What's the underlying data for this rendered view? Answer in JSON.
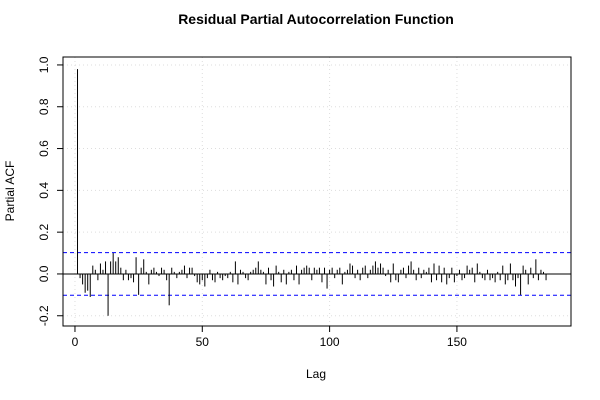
{
  "chart_data": {
    "type": "pacf",
    "title": "Residual Partial Autocorrelation Function",
    "x_label": "Lag",
    "y_label": "Partial ACF",
    "x": [
      1,
      2,
      3,
      4,
      5,
      6,
      7,
      8,
      9,
      10,
      11,
      12,
      13,
      14,
      15,
      16,
      17,
      18,
      19,
      20,
      21,
      22,
      23,
      24,
      25,
      26,
      27,
      28,
      29,
      30,
      31,
      32,
      33,
      34,
      35,
      36,
      37,
      38,
      39,
      40,
      41,
      42,
      43,
      44,
      45,
      46,
      47,
      48,
      49,
      50,
      51,
      52,
      53,
      54,
      55,
      56,
      57,
      58,
      59,
      60,
      61,
      62,
      63,
      64,
      65,
      66,
      67,
      68,
      69,
      70,
      71,
      72,
      73,
      74,
      75,
      76,
      77,
      78,
      79,
      80,
      81,
      82,
      83,
      84,
      85,
      86,
      87,
      88,
      89,
      90,
      91,
      92,
      93,
      94,
      95,
      96,
      97,
      98,
      99,
      100,
      101,
      102,
      103,
      104,
      105,
      106,
      107,
      108,
      109,
      110,
      111,
      112,
      113,
      114,
      115,
      116,
      117,
      118,
      119,
      120,
      121,
      122,
      123,
      124,
      125,
      126,
      127,
      128,
      129,
      130,
      131,
      132,
      133,
      134,
      135,
      136,
      137,
      138,
      139,
      140,
      141,
      142,
      143,
      144,
      145,
      146,
      147,
      148,
      149,
      150,
      151,
      152,
      153,
      154,
      155,
      156,
      157,
      158,
      159,
      160,
      161,
      162,
      163,
      164,
      165,
      166,
      167,
      168,
      169,
      170,
      171,
      172,
      173,
      174,
      175,
      176,
      177,
      178,
      179,
      180,
      181,
      182,
      183,
      184,
      185
    ],
    "values": [
      0.98,
      -0.02,
      -0.05,
      -0.09,
      -0.08,
      -0.11,
      0.04,
      0.02,
      -0.03,
      0.05,
      0.02,
      0.06,
      -0.2,
      0.06,
      0.1,
      0.06,
      0.08,
      0.03,
      -0.03,
      0.02,
      -0.03,
      -0.02,
      -0.04,
      0.08,
      -0.1,
      0.03,
      0.07,
      0.01,
      -0.05,
      0.02,
      0.03,
      0.01,
      -0.01,
      0.03,
      0.02,
      -0.03,
      -0.15,
      0.03,
      0.01,
      -0.02,
      0.01,
      0.02,
      0.04,
      -0.02,
      0.03,
      0.03,
      -0.01,
      -0.04,
      -0.05,
      -0.03,
      -0.06,
      -0.02,
      0.02,
      -0.03,
      -0.04,
      0.01,
      -0.02,
      -0.03,
      -0.01,
      -0.02,
      0.01,
      -0.04,
      0.06,
      -0.05,
      0.02,
      0.01,
      -0.02,
      -0.03,
      0.01,
      0.02,
      0.03,
      0.06,
      0.02,
      0.01,
      -0.05,
      0.03,
      -0.03,
      -0.06,
      0.04,
      0.01,
      -0.04,
      0.02,
      -0.05,
      0.01,
      0.02,
      -0.03,
      0.04,
      -0.05,
      0.02,
      0.03,
      0.04,
      0.03,
      -0.03,
      0.03,
      0.02,
      0.03,
      -0.04,
      0.03,
      -0.07,
      0.02,
      0.03,
      -0.02,
      0.02,
      0.03,
      -0.05,
      0.01,
      0.02,
      0.05,
      0.04,
      -0.02,
      0.02,
      -0.03,
      0.03,
      0.04,
      -0.02,
      0.02,
      0.04,
      0.06,
      0.03,
      0.05,
      0.03,
      -0.01,
      0.02,
      -0.04,
      0.05,
      -0.03,
      -0.04,
      0.02,
      0.03,
      -0.02,
      0.04,
      0.06,
      0.02,
      -0.03,
      0.03,
      -0.02,
      0.02,
      0.01,
      0.03,
      -0.04,
      0.05,
      -0.03,
      0.04,
      -0.04,
      0.03,
      -0.05,
      -0.02,
      0.03,
      -0.04,
      -0.01,
      0.02,
      -0.03,
      -0.02,
      0.04,
      0.02,
      0.03,
      -0.04,
      0.05,
      0.01,
      -0.02,
      -0.03,
      0.02,
      -0.03,
      -0.02,
      -0.04,
      0.01,
      -0.03,
      0.04,
      -0.05,
      -0.03,
      0.05,
      -0.03,
      -0.06,
      -0.02,
      -0.1,
      0.04,
      0.02,
      -0.05,
      0.03,
      -0.02,
      0.07,
      -0.03,
      0.02,
      0.01,
      -0.03
    ],
    "color": "#000000",
    "confidence_bounds": [
      0.102,
      -0.102
    ],
    "confidence_color": "#0000ff",
    "xlim": [
      -4.7,
      194.8
    ],
    "ylim": [
      -0.249,
      1.038
    ],
    "xticks": [
      0,
      50,
      100,
      150
    ],
    "yticks": [
      -0.2,
      {
        "value": 0,
        "label": "0.0"
      },
      0.2,
      0.4,
      0.6,
      0.8,
      {
        "value": 1,
        "label": "1.0"
      }
    ],
    "grid": true
  }
}
